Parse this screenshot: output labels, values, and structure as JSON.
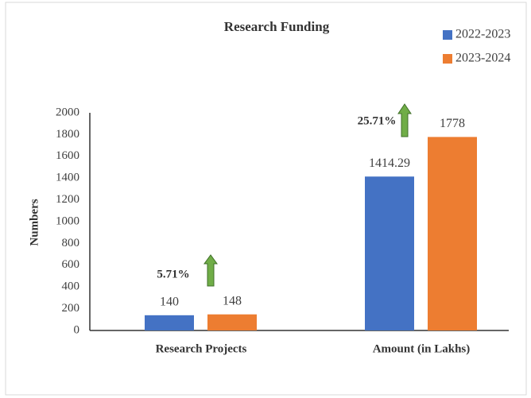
{
  "chart_data": {
    "type": "bar",
    "title": "Research Funding",
    "ylabel": "Numbers",
    "categories": [
      "Research Projects",
      "Amount (in Lakhs)"
    ],
    "series": [
      {
        "name": "2022-2023",
        "color": "#4472c4",
        "values": [
          140,
          1414.29
        ]
      },
      {
        "name": "2023-2024",
        "color": "#ed7d31",
        "values": [
          148,
          1778
        ]
      }
    ],
    "annotations": [
      "5.71%",
      "25.71%"
    ],
    "ylim": [
      0,
      2000
    ],
    "yticks": [
      0,
      200,
      400,
      600,
      800,
      1000,
      1200,
      1400,
      1600,
      1800,
      2000
    ],
    "grid": false,
    "legend": "top-right"
  }
}
